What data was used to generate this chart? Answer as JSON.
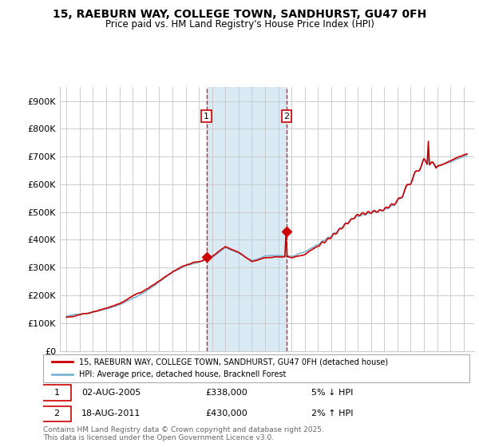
{
  "title": "15, RAEBURN WAY, COLLEGE TOWN, SANDHURST, GU47 0FH",
  "subtitle": "Price paid vs. HM Land Registry's House Price Index (HPI)",
  "legend_line1": "15, RAEBURN WAY, COLLEGE TOWN, SANDHURST, GU47 0FH (detached house)",
  "legend_line2": "HPI: Average price, detached house, Bracknell Forest",
  "annotation1_date": "02-AUG-2005",
  "annotation1_price": "£338,000",
  "annotation1_hpi": "5% ↓ HPI",
  "annotation2_date": "18-AUG-2011",
  "annotation2_price": "£430,000",
  "annotation2_hpi": "2% ↑ HPI",
  "footnote": "Contains HM Land Registry data © Crown copyright and database right 2025.\nThis data is licensed under the Open Government Licence v3.0.",
  "red_color": "#cc0000",
  "blue_color": "#7fb3d3",
  "light_blue_fill": "#daeaf5",
  "vline_color": "#cc0000",
  "grid_color": "#cccccc",
  "background_color": "#ffffff",
  "ylim": [
    0,
    950000
  ],
  "yticks": [
    0,
    100000,
    200000,
    300000,
    400000,
    500000,
    600000,
    700000,
    800000,
    900000
  ],
  "ytick_labels": [
    "£0",
    "£100K",
    "£200K",
    "£300K",
    "£400K",
    "£500K",
    "£600K",
    "£700K",
    "£800K",
    "£900K"
  ],
  "sale1_x": 2005.583,
  "sale1_price": 338000,
  "sale2_x": 2011.625,
  "sale2_price": 430000,
  "xmin": 1994.5,
  "xmax": 2025.8
}
